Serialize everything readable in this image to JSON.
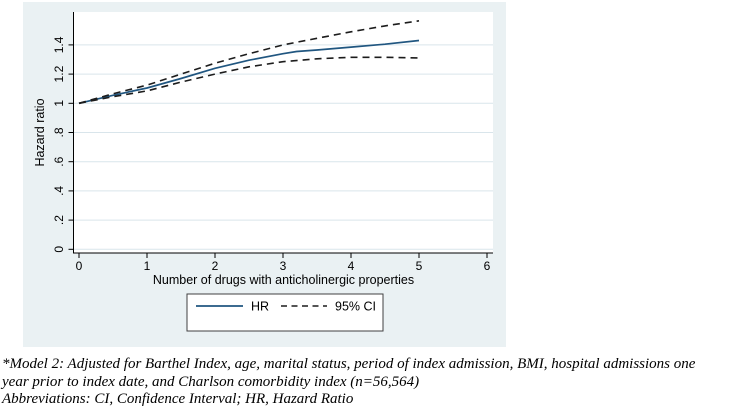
{
  "chart_data": {
    "type": "line",
    "title": "",
    "xlabel": "Number of drugs with anticholinergic properties",
    "ylabel": "Hazard ratio",
    "x_ticks": [
      0,
      1,
      2,
      3,
      4,
      5,
      6
    ],
    "y_ticks": [
      0,
      0.2,
      0.4,
      0.6,
      0.8,
      1,
      1.2,
      1.4
    ],
    "y_tick_labels": [
      "0",
      ".2",
      ".4",
      ".6",
      ".8",
      "1",
      "1.2",
      "1.4"
    ],
    "xlim": [
      0,
      6.1
    ],
    "ylim": [
      -0.02,
      1.62
    ],
    "grid": "horizontal",
    "legend_position": "bottom",
    "colors": {
      "hr_line": "#205680",
      "ci_line": "#1c1c1c",
      "figure_background": "#eaf1f3",
      "plot_background": "#ffffff",
      "gridline": "#d9e5eb",
      "axis": "#000000",
      "legend_border": "#404040"
    },
    "series": [
      {
        "name": "HR",
        "style": "solid",
        "x": [
          0,
          0.5,
          1,
          1.5,
          2,
          2.5,
          3,
          3.2,
          3.5,
          4,
          4.5,
          5
        ],
        "y": [
          1.0,
          1.055,
          1.105,
          1.17,
          1.24,
          1.295,
          1.34,
          1.355,
          1.365,
          1.385,
          1.405,
          1.43
        ]
      },
      {
        "name": "95% CI upper",
        "style": "dashed",
        "x": [
          0,
          0.5,
          1,
          1.5,
          2,
          2.5,
          3,
          3.5,
          4,
          4.5,
          5
        ],
        "y": [
          1.0,
          1.065,
          1.125,
          1.2,
          1.275,
          1.34,
          1.4,
          1.445,
          1.49,
          1.53,
          1.565
        ]
      },
      {
        "name": "95% CI lower",
        "style": "dashed",
        "x": [
          0,
          0.5,
          1,
          1.5,
          2,
          2.5,
          3,
          3.5,
          4,
          4.5,
          5
        ],
        "y": [
          1.0,
          1.045,
          1.085,
          1.145,
          1.2,
          1.25,
          1.285,
          1.305,
          1.315,
          1.315,
          1.31
        ]
      }
    ],
    "legend": [
      {
        "label": "HR",
        "style": "solid"
      },
      {
        "label": "95% CI",
        "style": "dashed"
      }
    ]
  },
  "footnotes": {
    "model_note_line1": "*Model 2: Adjusted for Barthel Index, age, marital status, period of index admission, BMI, hospital admissions one",
    "model_note_line2": "year prior to index date, and Charlson comorbidity index (n=56,564)",
    "abbreviations": "Abbreviations: CI, Confidence Interval; HR, Hazard Ratio",
    "model_note_full": "*Model 2: Adjusted for Barthel Index, age, marital status, period of index admission, BMI, hospital admissions one year prior to index date, and Charlson comorbidity index (n=56,564)"
  }
}
